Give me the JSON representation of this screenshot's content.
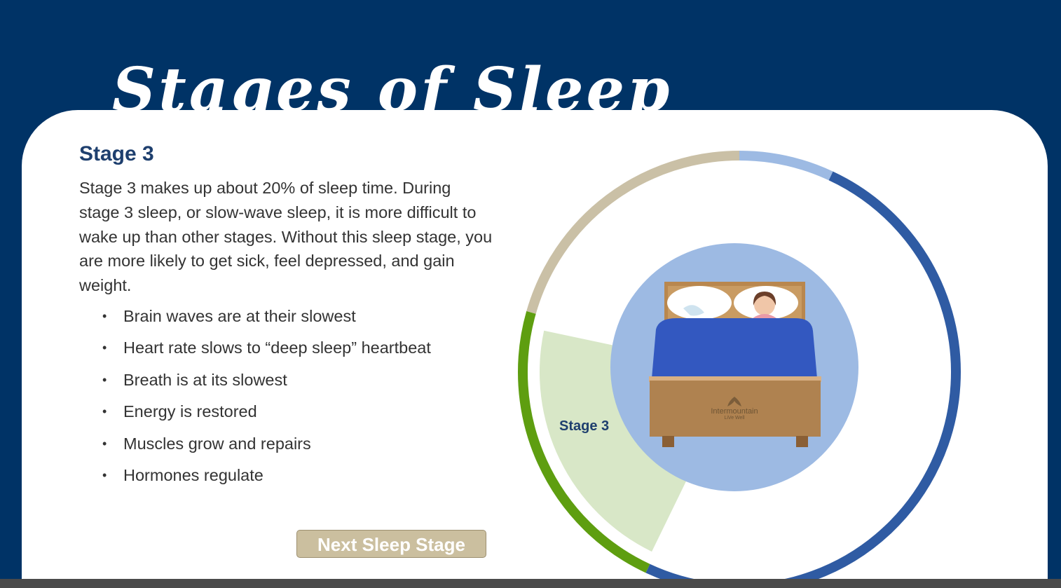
{
  "header": {
    "title": "Stages of Sleep"
  },
  "content": {
    "heading": "Stage 3",
    "description": "Stage 3 makes up about 20% of sleep time. During stage 3 sleep, or slow-wave sleep, it is more difficult to wake up than other stages. Without this sleep stage, you are more likely to get sick, feel depressed, and gain weight.",
    "bullets": [
      "Brain waves are at their slowest",
      "Heart rate slows to “deep sleep” heartbeat",
      "Breath is at its slowest",
      "Energy is restored",
      "Muscles grow and repairs",
      "Hormones regulate"
    ]
  },
  "next_button": {
    "label": "Next Sleep Stage"
  },
  "wheel": {
    "active_label": "Stage 3",
    "colors": {
      "stage1": "#9dbae3",
      "stage2": "#2f5ba3",
      "stage3": "#5e9e10",
      "stage4": "#cac0a6",
      "active_wedge": "#d8e7c7",
      "center_circle": "#9dbae3"
    },
    "bed_logo": {
      "name": "Intermountain",
      "tagline": "LiVe Well"
    }
  }
}
